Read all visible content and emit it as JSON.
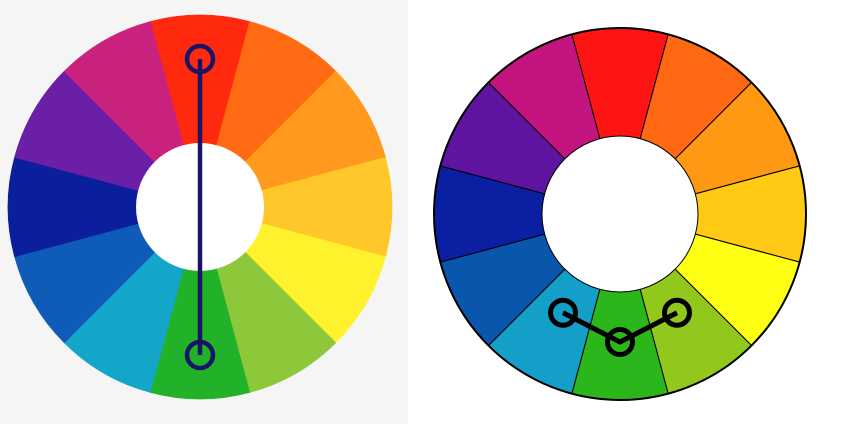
{
  "diagrams": [
    {
      "scheme": "complementary",
      "segments": [
        {
          "hue": "red",
          "color": "#ff2a0d"
        },
        {
          "hue": "red-orange",
          "color": "#ff6a12"
        },
        {
          "hue": "orange",
          "color": "#ff9a1f"
        },
        {
          "hue": "yellow-orange",
          "color": "#ffc72a"
        },
        {
          "hue": "yellow",
          "color": "#fff22c"
        },
        {
          "hue": "yellow-green",
          "color": "#8cc83a"
        },
        {
          "hue": "green",
          "color": "#22b22a"
        },
        {
          "hue": "blue-green",
          "color": "#14a6c8"
        },
        {
          "hue": "blue",
          "color": "#0f5cb8"
        },
        {
          "hue": "blue-violet",
          "color": "#0b1f9c"
        },
        {
          "hue": "violet",
          "color": "#6a1fa6"
        },
        {
          "hue": "red-violet",
          "color": "#c8227e"
        }
      ],
      "selected_hues": [
        "red",
        "green"
      ],
      "marker_color": "#1a1466",
      "outline": false
    },
    {
      "scheme": "analogous",
      "segments": [
        {
          "hue": "red",
          "color": "#ff1414"
        },
        {
          "hue": "red-orange",
          "color": "#ff6812"
        },
        {
          "hue": "orange",
          "color": "#ff9914"
        },
        {
          "hue": "yellow-orange",
          "color": "#ffc914"
        },
        {
          "hue": "yellow",
          "color": "#ffff14"
        },
        {
          "hue": "yellow-green",
          "color": "#92c81e"
        },
        {
          "hue": "green",
          "color": "#2bb61c"
        },
        {
          "hue": "blue-green",
          "color": "#139fc8"
        },
        {
          "hue": "blue",
          "color": "#0b56ad"
        },
        {
          "hue": "blue-violet",
          "color": "#0b1fa3"
        },
        {
          "hue": "violet",
          "color": "#5f14a0"
        },
        {
          "hue": "red-violet",
          "color": "#c41480"
        }
      ],
      "selected_hues": [
        "blue-green",
        "green",
        "yellow-green"
      ],
      "marker_color": "#000000",
      "outline": true
    }
  ]
}
